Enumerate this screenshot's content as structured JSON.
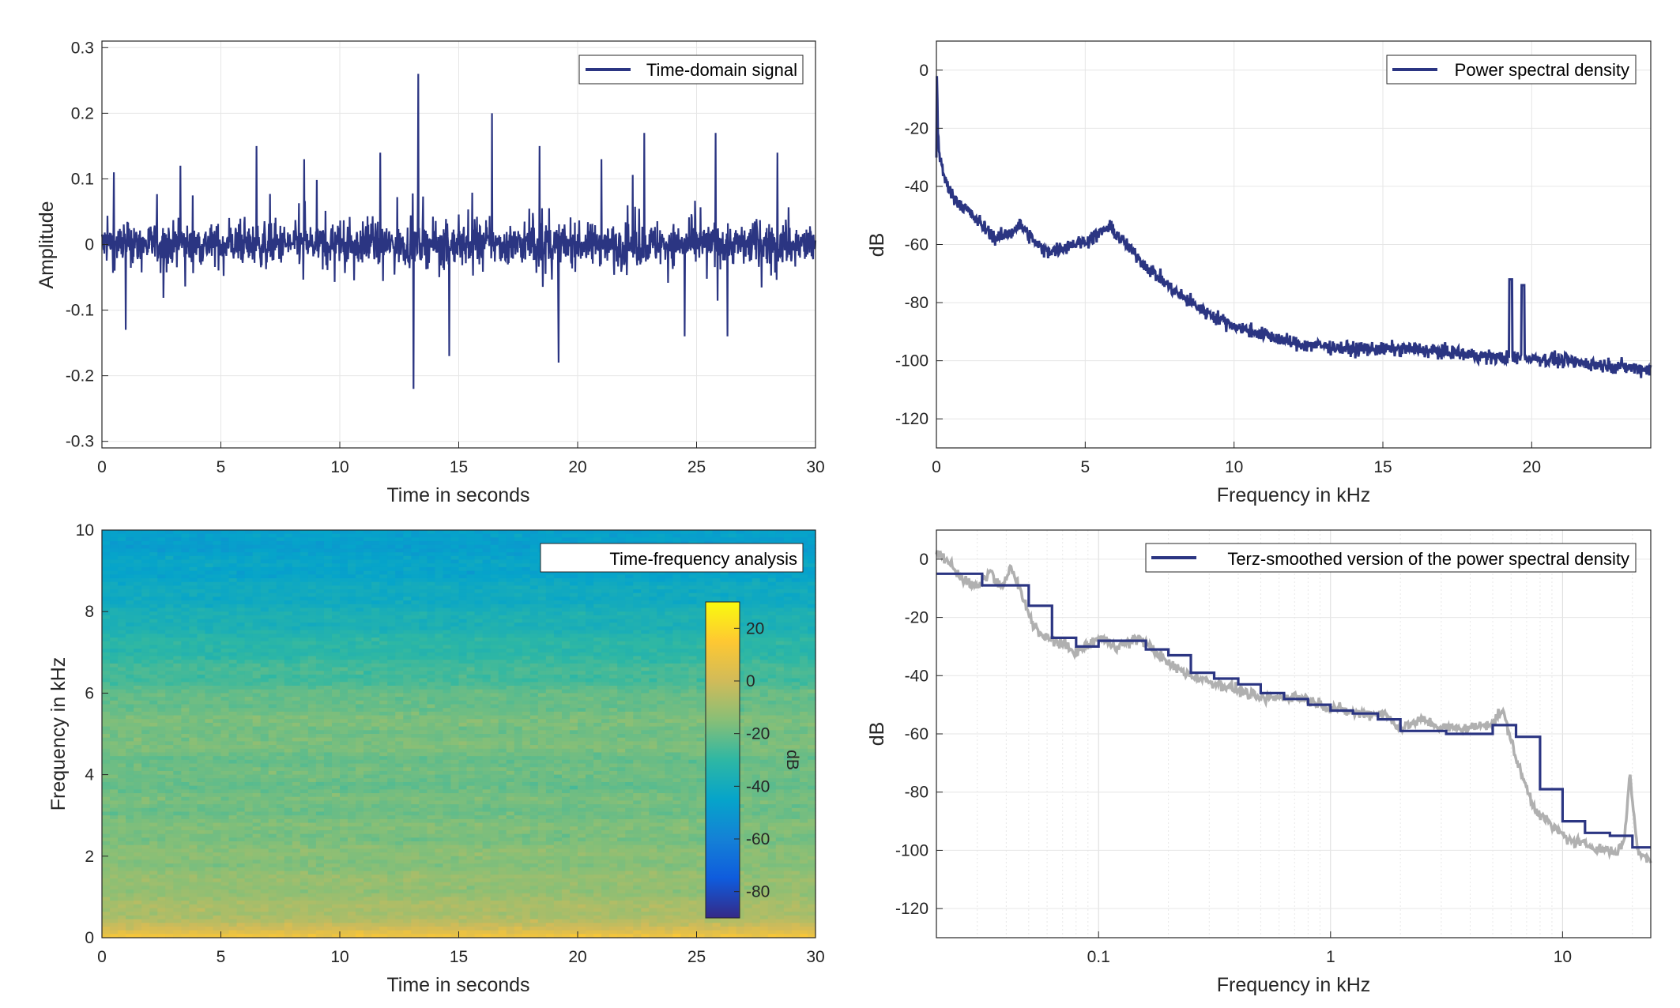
{
  "colors": {
    "signal": "#2b3582",
    "smoothed_gray": "#b0b0b0",
    "grid": "#e6e6e6",
    "axis": "#262626"
  },
  "chart_data": [
    {
      "id": "time",
      "type": "line",
      "legend": "Time-domain signal",
      "legend_position": "top-right",
      "xlabel": "Time in seconds",
      "ylabel": "Amplitude",
      "xlim": [
        0,
        30
      ],
      "ylim": [
        -0.31,
        0.31
      ],
      "xticks": [
        0,
        5,
        10,
        15,
        20,
        25,
        30
      ],
      "xticklabels": [
        "0",
        "5",
        "10",
        "15",
        "20",
        "25",
        "30"
      ],
      "yticks": [
        -0.3,
        -0.2,
        -0.1,
        0,
        0.1,
        0.2,
        0.3
      ],
      "yticklabels": [
        "-0.3",
        "-0.2",
        "-0.1",
        "0",
        "0.1",
        "0.2",
        "0.3"
      ],
      "grid": true,
      "peaks": [
        {
          "x": 0.5,
          "y": 0.11
        },
        {
          "x": 1.0,
          "y": -0.13
        },
        {
          "x": 3.3,
          "y": 0.12
        },
        {
          "x": 6.5,
          "y": 0.15
        },
        {
          "x": 8.5,
          "y": 0.13
        },
        {
          "x": 11.7,
          "y": 0.14
        },
        {
          "x": 13.1,
          "y": -0.22
        },
        {
          "x": 13.3,
          "y": 0.26
        },
        {
          "x": 14.6,
          "y": -0.17
        },
        {
          "x": 16.4,
          "y": 0.2
        },
        {
          "x": 18.4,
          "y": 0.15
        },
        {
          "x": 19.2,
          "y": -0.18
        },
        {
          "x": 21.0,
          "y": 0.13
        },
        {
          "x": 22.8,
          "y": 0.17
        },
        {
          "x": 24.5,
          "y": -0.14
        },
        {
          "x": 25.8,
          "y": 0.17
        },
        {
          "x": 26.3,
          "y": -0.14
        },
        {
          "x": 28.4,
          "y": 0.14
        }
      ]
    },
    {
      "id": "psd",
      "type": "line",
      "legend": "Power spectral density",
      "legend_position": "top-right",
      "xlabel": "Frequency in kHz",
      "ylabel": "dB",
      "xlim": [
        0,
        24
      ],
      "ylim": [
        -130,
        10
      ],
      "xticks": [
        0,
        5,
        10,
        15,
        20
      ],
      "xticklabels": [
        "0",
        "5",
        "10",
        "15",
        "20"
      ],
      "yticks": [
        -120,
        -100,
        -80,
        -60,
        -40,
        -20,
        0
      ],
      "yticklabels": [
        "-120",
        "-100",
        "-80",
        "-60",
        "-40",
        "-20",
        "0"
      ],
      "grid": true,
      "x": [
        0,
        0.02,
        0.05,
        0.1,
        0.3,
        0.6,
        1,
        1.5,
        2,
        2.5,
        2.8,
        3.2,
        3.6,
        4,
        4.5,
        5,
        5.5,
        5.8,
        6.2,
        7,
        8,
        9,
        10,
        11,
        12,
        13,
        14,
        15,
        16,
        17,
        18,
        19,
        19.5,
        20,
        21,
        22,
        23,
        24
      ],
      "y": [
        -30,
        2,
        -20,
        -30,
        -38,
        -44,
        -48,
        -53,
        -58,
        -56,
        -53,
        -58,
        -62,
        -62,
        -60,
        -59,
        -56,
        -54,
        -58,
        -67,
        -76,
        -83,
        -88,
        -91,
        -94,
        -95,
        -96,
        -96,
        -96,
        -97,
        -98,
        -99,
        -99,
        -99,
        -100,
        -101,
        -102,
        -103
      ],
      "spikes": [
        {
          "x": 19.3,
          "y": -72
        },
        {
          "x": 19.7,
          "y": -74
        }
      ]
    },
    {
      "id": "spectrogram",
      "type": "heatmap",
      "legend": "Time-frequency analysis",
      "legend_position": "top-right",
      "xlabel": "Time in seconds",
      "ylabel": "Frequency in kHz",
      "xlim": [
        0,
        30
      ],
      "ylim": [
        0,
        10
      ],
      "xticks": [
        0,
        5,
        10,
        15,
        20,
        25,
        30
      ],
      "xticklabels": [
        "0",
        "5",
        "10",
        "15",
        "20",
        "25",
        "30"
      ],
      "yticks": [
        0,
        2,
        4,
        6,
        8,
        10
      ],
      "yticklabels": [
        "0",
        "2",
        "4",
        "6",
        "8",
        "10"
      ],
      "profile_freq": [
        0,
        0.2,
        0.6,
        1.2,
        2,
        3,
        4,
        5,
        5.7,
        6.3,
        7,
        8,
        9,
        10
      ],
      "profile_db": [
        12,
        0,
        -8,
        -12,
        -15,
        -18,
        -20,
        -17,
        -19,
        -25,
        -30,
        -38,
        -44,
        -48
      ],
      "colorbar": {
        "label": "dB",
        "range": [
          -90,
          30
        ],
        "ticks": [
          -80,
          -60,
          -40,
          -20,
          0,
          20
        ],
        "ticklabels": [
          "-80",
          "-60",
          "-40",
          "-20",
          "0",
          "20"
        ]
      }
    },
    {
      "id": "terz",
      "type": "line",
      "legend": "Terz-smoothed version of the power spectral density",
      "legend_position": "top-right",
      "xlabel": "Frequency in kHz",
      "ylabel": "dB",
      "xscale": "log",
      "xlim": [
        0.02,
        24
      ],
      "ylim": [
        -130,
        10
      ],
      "xticks": [
        0.1,
        1,
        10
      ],
      "xticklabels": [
        "0.1",
        "1",
        "10"
      ],
      "yticks": [
        -120,
        -100,
        -80,
        -60,
        -40,
        -20,
        0
      ],
      "yticklabels": [
        "-120",
        "-100",
        "-80",
        "-60",
        "-40",
        "-20",
        "0"
      ],
      "grid": true,
      "series": [
        {
          "style": "step",
          "x": [
            0.02,
            0.025,
            0.0315,
            0.04,
            0.05,
            0.063,
            0.08,
            0.1,
            0.125,
            0.16,
            0.2,
            0.25,
            0.315,
            0.4,
            0.5,
            0.63,
            0.8,
            1,
            1.25,
            1.6,
            2,
            2.5,
            3.15,
            4,
            5,
            6.3,
            8,
            10,
            12.5,
            16,
            20,
            24
          ],
          "y": [
            -5,
            -5,
            -9,
            -9,
            -16,
            -27,
            -30,
            -28,
            -28,
            -31,
            -33,
            -39,
            -41,
            -43,
            -46,
            -48,
            -50,
            -52,
            -53,
            -55,
            -59,
            -59,
            -60,
            -60,
            -57,
            -61,
            -79,
            -90,
            -94,
            -95,
            -99,
            -99
          ]
        },
        {
          "style": "raw",
          "x": [
            0.02,
            0.022,
            0.026,
            0.03,
            0.034,
            0.038,
            0.042,
            0.048,
            0.052,
            0.058,
            0.065,
            0.08,
            0.1,
            0.12,
            0.15,
            0.2,
            0.25,
            0.3,
            0.4,
            0.5,
            0.7,
            1,
            1.3,
            1.7,
            2,
            2.5,
            3,
            4,
            5,
            5.5,
            6.5,
            7.5,
            9,
            11,
            14,
            17,
            18.5,
            19.5,
            21,
            24
          ],
          "y": [
            2,
            0,
            -7,
            -10,
            -4,
            -10,
            -3,
            -15,
            -22,
            -27,
            -28,
            -32,
            -27,
            -30,
            -27,
            -36,
            -40,
            -42,
            -45,
            -48,
            -47,
            -51,
            -53,
            -53,
            -58,
            -55,
            -58,
            -58,
            -56,
            -52,
            -72,
            -85,
            -92,
            -97,
            -99,
            -101,
            -96,
            -73,
            -100,
            -104
          ]
        }
      ]
    }
  ]
}
